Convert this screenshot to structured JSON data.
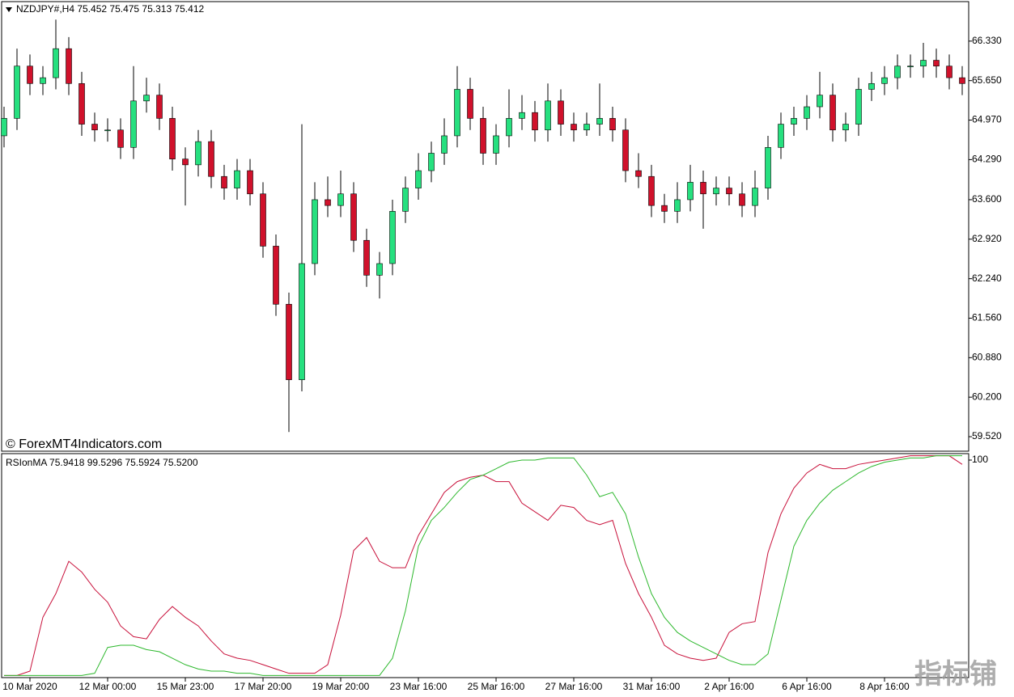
{
  "chart_data": [
    {
      "type": "candlestick",
      "title": "NZDJPY#,H4  75.452 75.475 75.313 75.412",
      "annotation": "© ForexMT4Indicators.com",
      "watermark": "指标铺",
      "categories": [
        null,
        null,
        "10 Mar 2020",
        null,
        null,
        null,
        null,
        null,
        "12 Mar 00:00",
        null,
        null,
        null,
        null,
        null,
        "15 Mar 23:00",
        null,
        null,
        null,
        null,
        null,
        "17 Mar 20:00",
        null,
        null,
        null,
        null,
        null,
        "19 Mar 20:00",
        null,
        null,
        null,
        null,
        null,
        "23 Mar 16:00",
        null,
        null,
        null,
        null,
        null,
        "25 Mar 16:00",
        null,
        null,
        null,
        null,
        null,
        "27 Mar 16:00",
        null,
        null,
        null,
        null,
        null,
        "31 Mar 16:00",
        null,
        null,
        null,
        null,
        null,
        "2 Apr 16:00",
        null,
        null,
        null,
        null,
        null,
        "6 Apr 16:00",
        null,
        null,
        null,
        null,
        null,
        "8 Apr 16:00",
        null,
        null,
        null,
        null,
        null,
        null
      ],
      "open": [
        64.7,
        65.0,
        65.9,
        65.6,
        65.7,
        66.2,
        65.6,
        64.9,
        64.8,
        64.8,
        64.5,
        65.3,
        65.4,
        65.0,
        64.3,
        64.2,
        64.6,
        64.0,
        63.8,
        64.1,
        63.7,
        62.8,
        61.8,
        60.5,
        62.5,
        63.6,
        63.5,
        63.7,
        62.9,
        62.3,
        62.5,
        63.4,
        63.8,
        64.1,
        64.4,
        64.7,
        65.5,
        65.0,
        64.4,
        64.7,
        65.0,
        65.1,
        64.8,
        65.3,
        64.9,
        64.8,
        64.9,
        65.0,
        64.8,
        64.1,
        64.0,
        63.5,
        63.4,
        63.6,
        63.9,
        63.7,
        63.8,
        63.7,
        63.5,
        63.8,
        64.5,
        64.9,
        65.0,
        65.2,
        65.4,
        64.8,
        64.9,
        65.5,
        65.6,
        65.7,
        65.9,
        65.9,
        66.0,
        65.9,
        65.7
      ],
      "high": [
        65.2,
        66.2,
        66.1,
        65.9,
        66.7,
        66.4,
        65.8,
        65.1,
        65.0,
        65.0,
        65.9,
        65.7,
        65.6,
        65.2,
        64.5,
        64.8,
        64.8,
        64.2,
        64.3,
        64.3,
        63.9,
        63.0,
        62.0,
        64.9,
        63.9,
        64.0,
        64.1,
        63.9,
        63.1,
        62.7,
        63.6,
        64.0,
        64.4,
        64.6,
        65.0,
        65.9,
        65.7,
        65.2,
        64.9,
        65.5,
        65.4,
        65.3,
        65.6,
        65.5,
        65.1,
        65.1,
        65.6,
        65.2,
        65.0,
        64.4,
        64.2,
        63.7,
        63.9,
        64.2,
        64.1,
        64.0,
        64.0,
        63.9,
        64.1,
        64.7,
        65.1,
        65.2,
        65.4,
        65.8,
        65.6,
        65.1,
        65.7,
        65.8,
        65.9,
        66.1,
        66.1,
        66.3,
        66.2,
        66.1,
        65.9
      ],
      "low": [
        64.5,
        64.8,
        65.4,
        65.4,
        65.5,
        65.4,
        64.7,
        64.6,
        64.6,
        64.3,
        64.3,
        65.1,
        64.8,
        64.1,
        63.5,
        64.0,
        63.8,
        63.6,
        63.6,
        63.5,
        62.6,
        61.6,
        59.6,
        60.3,
        62.3,
        63.3,
        63.3,
        62.7,
        62.1,
        61.9,
        62.3,
        63.2,
        63.6,
        63.9,
        64.2,
        64.5,
        64.8,
        64.2,
        64.2,
        64.5,
        64.8,
        64.6,
        64.6,
        64.7,
        64.6,
        64.7,
        64.7,
        64.6,
        63.9,
        63.8,
        63.3,
        63.2,
        63.2,
        63.4,
        63.1,
        63.5,
        63.5,
        63.3,
        63.3,
        63.6,
        64.3,
        64.7,
        64.8,
        65.0,
        64.6,
        64.6,
        64.7,
        65.3,
        65.4,
        65.5,
        65.7,
        65.7,
        65.7,
        65.5,
        65.4
      ],
      "close": [
        65.0,
        65.9,
        65.6,
        65.7,
        66.2,
        65.6,
        64.9,
        64.8,
        64.8,
        64.5,
        65.3,
        65.4,
        65.0,
        64.3,
        64.2,
        64.6,
        64.0,
        63.8,
        64.1,
        63.7,
        62.8,
        61.8,
        60.5,
        62.5,
        63.6,
        63.5,
        63.7,
        62.9,
        62.3,
        62.5,
        63.4,
        63.8,
        64.1,
        64.4,
        64.7,
        65.5,
        65.0,
        64.4,
        64.7,
        65.0,
        65.1,
        64.8,
        65.3,
        64.9,
        64.8,
        64.9,
        65.0,
        64.8,
        64.1,
        64.0,
        63.5,
        63.4,
        63.6,
        63.9,
        63.7,
        63.8,
        63.7,
        63.5,
        63.8,
        64.5,
        64.9,
        65.0,
        65.2,
        65.4,
        64.8,
        64.9,
        65.5,
        65.6,
        65.7,
        65.9,
        65.9,
        66.0,
        65.9,
        65.7,
        65.6
      ],
      "up_color": "#26e07f",
      "down_color": "#d0112b",
      "ylim": [
        59.27,
        67.01
      ],
      "yticks": [
        {
          "value": 66.33,
          "label": "66.330"
        },
        {
          "value": 65.65,
          "label": "65.650"
        },
        {
          "value": 64.97,
          "label": "64.970"
        },
        {
          "value": 64.29,
          "label": "64.290"
        },
        {
          "value": 63.6,
          "label": "63.600"
        },
        {
          "value": 62.92,
          "label": "62.920"
        },
        {
          "value": 62.24,
          "label": "62.240"
        },
        {
          "value": 61.56,
          "label": "61.560"
        },
        {
          "value": 60.88,
          "label": "60.880"
        },
        {
          "value": 60.2,
          "label": "60.200"
        },
        {
          "value": 59.52,
          "label": "59.520"
        }
      ]
    },
    {
      "type": "line",
      "title": "RSIonMA 75.9418 99.5296 75.5924 75.5200",
      "series": [
        {
          "color": "#c8103a",
          "values": [
            0,
            0,
            2,
            27,
            38,
            53,
            48,
            40,
            34,
            23,
            18,
            17,
            26,
            32,
            27,
            23,
            16,
            10,
            8,
            7,
            5,
            3,
            1,
            1,
            1,
            5,
            28,
            58,
            64,
            53,
            50,
            50,
            65,
            75,
            85,
            90,
            92,
            93,
            90,
            90,
            80,
            76,
            72,
            79,
            78,
            72,
            70,
            72,
            52,
            38,
            27,
            14,
            10,
            8,
            7,
            8,
            20,
            24,
            25,
            57,
            75,
            87,
            94,
            98,
            96,
            96,
            98,
            99,
            100,
            101,
            102,
            102,
            102,
            102,
            98
          ]
        },
        {
          "color": "#2db82d",
          "values": [
            0,
            0,
            0,
            0,
            0,
            0,
            0,
            1,
            13,
            14,
            14,
            12,
            11,
            8,
            5,
            3,
            2,
            2,
            1,
            1,
            0,
            0,
            0,
            0,
            0,
            0,
            0,
            0,
            0,
            0,
            8,
            30,
            60,
            72,
            78,
            85,
            91,
            93,
            96,
            99,
            100,
            100,
            101,
            101,
            101,
            93,
            83,
            85,
            75,
            55,
            38,
            27,
            20,
            16,
            13,
            10,
            7,
            5,
            5,
            10,
            35,
            60,
            72,
            80,
            86,
            90,
            94,
            97,
            99,
            100,
            101,
            101,
            102,
            102,
            102
          ]
        }
      ],
      "ylim": [
        -1,
        103
      ],
      "yticks": [
        100
      ]
    }
  ]
}
